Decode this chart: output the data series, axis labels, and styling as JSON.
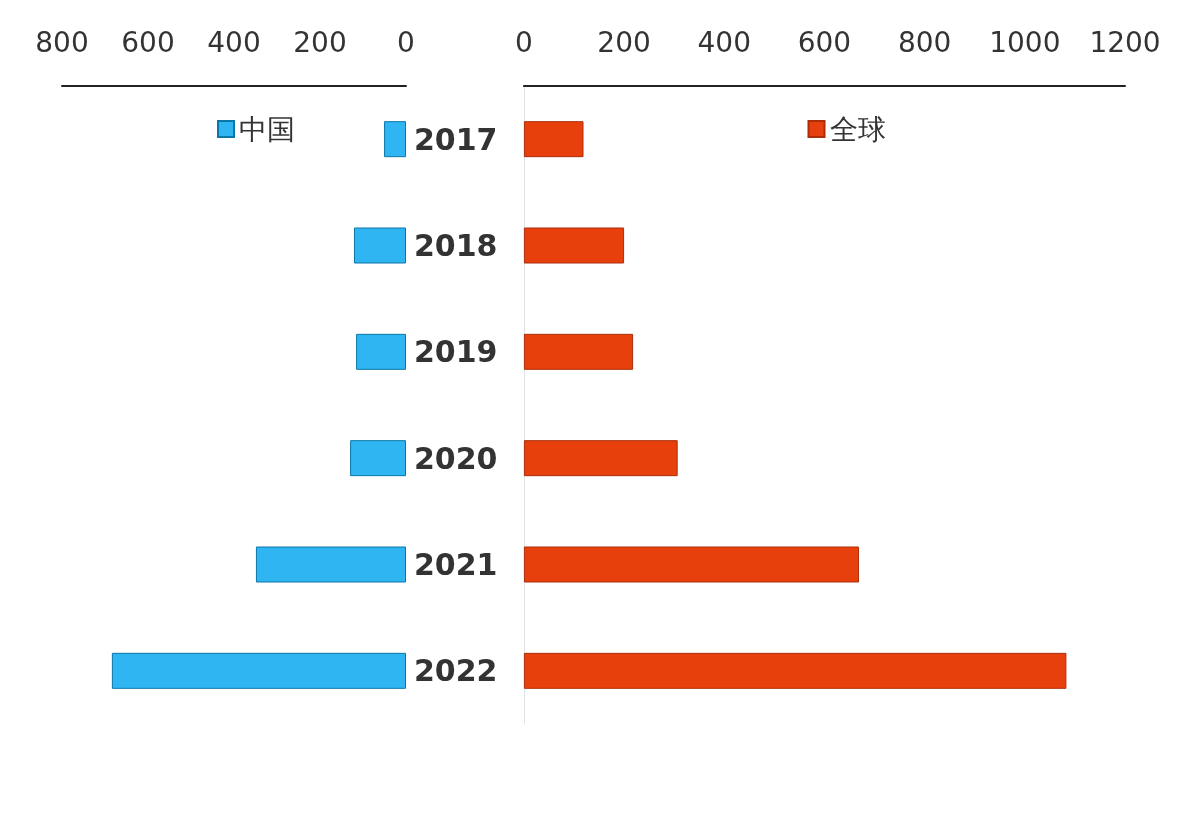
{
  "chart_data": [
    {
      "type": "bar",
      "orientation": "horizontal",
      "categories": [
        "2017",
        "2018",
        "2019",
        "2020",
        "2021",
        "2022"
      ],
      "series": [
        {
          "name": "中国",
          "color": "#2fb5f2",
          "values": [
            51,
            121,
            116,
            130,
            349,
            684
          ]
        }
      ],
      "xlim": [
        800,
        0
      ],
      "xticks": [
        800,
        600,
        400,
        200,
        0
      ],
      "grid": false,
      "legend": "top"
    },
    {
      "type": "bar",
      "orientation": "horizontal",
      "categories": [
        "2017",
        "2018",
        "2019",
        "2020",
        "2021",
        "2022"
      ],
      "series": [
        {
          "name": "全球",
          "color": "#e8400c",
          "values": [
            119,
            200,
            218,
            307,
            669,
            1083
          ]
        }
      ],
      "xlim": [
        0,
        1200
      ],
      "xticks": [
        0,
        200,
        400,
        600,
        800,
        1000,
        1200
      ],
      "grid": false,
      "legend": "top",
      "tick_labels": "x"
    }
  ]
}
